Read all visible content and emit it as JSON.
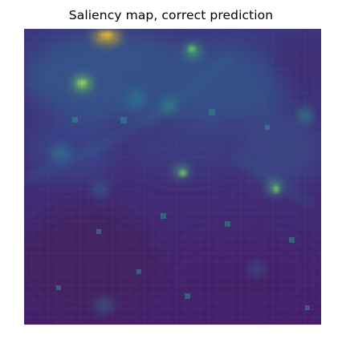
{
  "figure": {
    "title": "Saliency map, correct prediction"
  },
  "colormap": {
    "name": "viridis",
    "low": "#440154",
    "mid": "#21908c",
    "high": "#fde725"
  }
}
